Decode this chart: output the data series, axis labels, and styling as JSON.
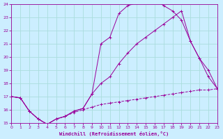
{
  "xlabel": "Windchill (Refroidissement éolien,°C)",
  "xlim": [
    0,
    23
  ],
  "ylim": [
    15,
    24
  ],
  "yticks": [
    15,
    16,
    17,
    18,
    19,
    20,
    21,
    22,
    23,
    24
  ],
  "xticks": [
    0,
    1,
    2,
    3,
    4,
    5,
    6,
    7,
    8,
    9,
    10,
    11,
    12,
    13,
    14,
    15,
    16,
    17,
    18,
    19,
    20,
    21,
    22,
    23
  ],
  "bg_color": "#cceeff",
  "line_color": "#990099",
  "grid_color": "#aadddd",
  "line1_x": [
    0,
    1,
    2,
    3,
    4,
    5,
    6,
    7,
    8,
    9,
    10,
    11,
    12,
    13,
    14,
    15,
    16,
    17,
    18,
    19,
    20,
    21,
    22,
    23
  ],
  "line1_y": [
    17.0,
    16.9,
    15.9,
    15.3,
    14.9,
    15.3,
    15.5,
    15.9,
    16.1,
    17.2,
    21.0,
    21.5,
    23.3,
    23.9,
    24.1,
    24.4,
    24.4,
    23.9,
    23.5,
    22.8,
    21.2,
    19.9,
    18.5,
    17.6
  ],
  "line2_x": [
    0,
    1,
    2,
    3,
    4,
    5,
    6,
    7,
    8,
    9,
    10,
    11,
    12,
    13,
    14,
    15,
    16,
    17,
    18,
    19,
    20,
    21,
    22,
    23
  ],
  "line2_y": [
    17.0,
    16.9,
    15.9,
    15.3,
    14.9,
    15.3,
    15.5,
    15.9,
    16.1,
    17.2,
    18.0,
    18.5,
    19.5,
    20.3,
    21.0,
    21.5,
    22.0,
    22.5,
    23.0,
    23.5,
    21.2,
    19.9,
    19.0,
    17.6
  ],
  "line3_x": [
    0,
    1,
    2,
    3,
    4,
    5,
    6,
    7,
    8,
    9,
    10,
    11,
    12,
    13,
    14,
    15,
    16,
    17,
    18,
    19,
    20,
    21,
    22,
    23
  ],
  "line3_y": [
    17.0,
    16.9,
    15.9,
    15.3,
    14.9,
    15.3,
    15.5,
    15.8,
    16.0,
    16.2,
    16.4,
    16.5,
    16.6,
    16.7,
    16.8,
    16.9,
    17.0,
    17.1,
    17.2,
    17.3,
    17.4,
    17.5,
    17.5,
    17.6
  ]
}
